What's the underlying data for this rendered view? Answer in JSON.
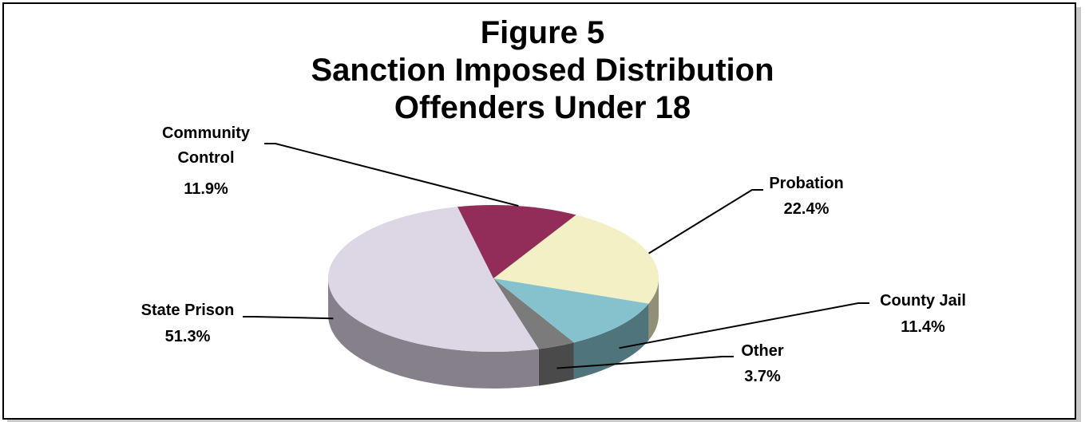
{
  "chart_data": {
    "type": "pie",
    "title": "Figure 5",
    "subtitle_lines": [
      "Sanction Imposed Distribution",
      "Offenders Under 18"
    ],
    "slices": [
      {
        "label": "Probation",
        "label_lines": [
          "Probation"
        ],
        "value": 22.4,
        "value_label": "22.4%",
        "color": "#F2F0C4"
      },
      {
        "label": "County Jail",
        "label_lines": [
          "County Jail"
        ],
        "value": 11.4,
        "value_label": "11.4%",
        "color": "#86C2CE"
      },
      {
        "label": "Other",
        "label_lines": [
          "Other"
        ],
        "value": 3.7,
        "value_label": "3.7%",
        "color": "#7B7B7B"
      },
      {
        "label": "State Prison",
        "label_lines": [
          "State Prison"
        ],
        "value": 51.3,
        "value_label": "51.3%",
        "color": "#DDD6E4"
      },
      {
        "label": "Community Control",
        "label_lines": [
          "Community",
          "Control"
        ],
        "value": 11.9,
        "value_label": "11.9%",
        "color": "#922D5A"
      }
    ]
  }
}
